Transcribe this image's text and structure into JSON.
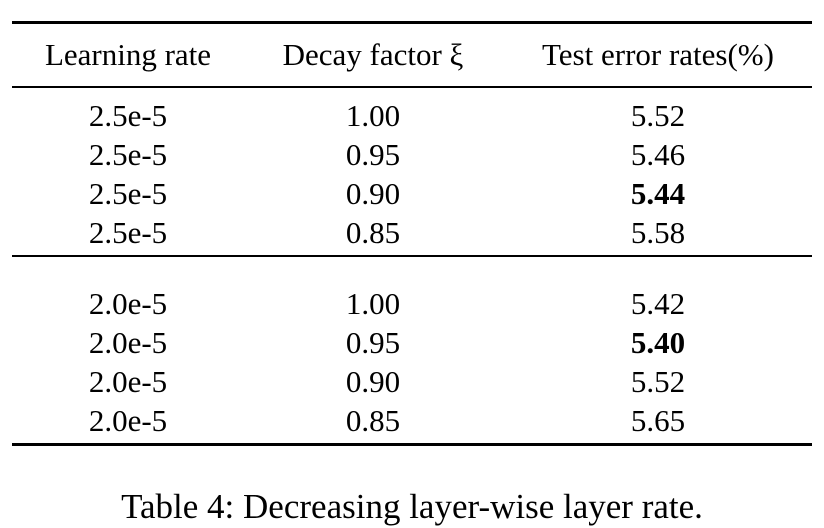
{
  "table": {
    "header": [
      "Learning rate",
      "Decay factor ξ",
      "Test error rates(%)"
    ],
    "groups": [
      [
        [
          "2.5e-5",
          "1.00",
          "5.52"
        ],
        [
          "2.5e-5",
          "0.95",
          "5.46"
        ],
        [
          "2.5e-5",
          "0.90",
          {
            "text": "5.44",
            "bold": true
          }
        ],
        [
          "2.5e-5",
          "0.85",
          "5.58"
        ]
      ],
      [
        [
          "2.0e-5",
          "1.00",
          "5.42"
        ],
        [
          "2.0e-5",
          "0.95",
          {
            "text": "5.40",
            "bold": true
          }
        ],
        [
          "2.0e-5",
          "0.90",
          "5.52"
        ],
        [
          "2.0e-5",
          "0.85",
          "5.65"
        ]
      ]
    ],
    "caption": "Table 4: Decreasing layer-wise layer rate."
  }
}
